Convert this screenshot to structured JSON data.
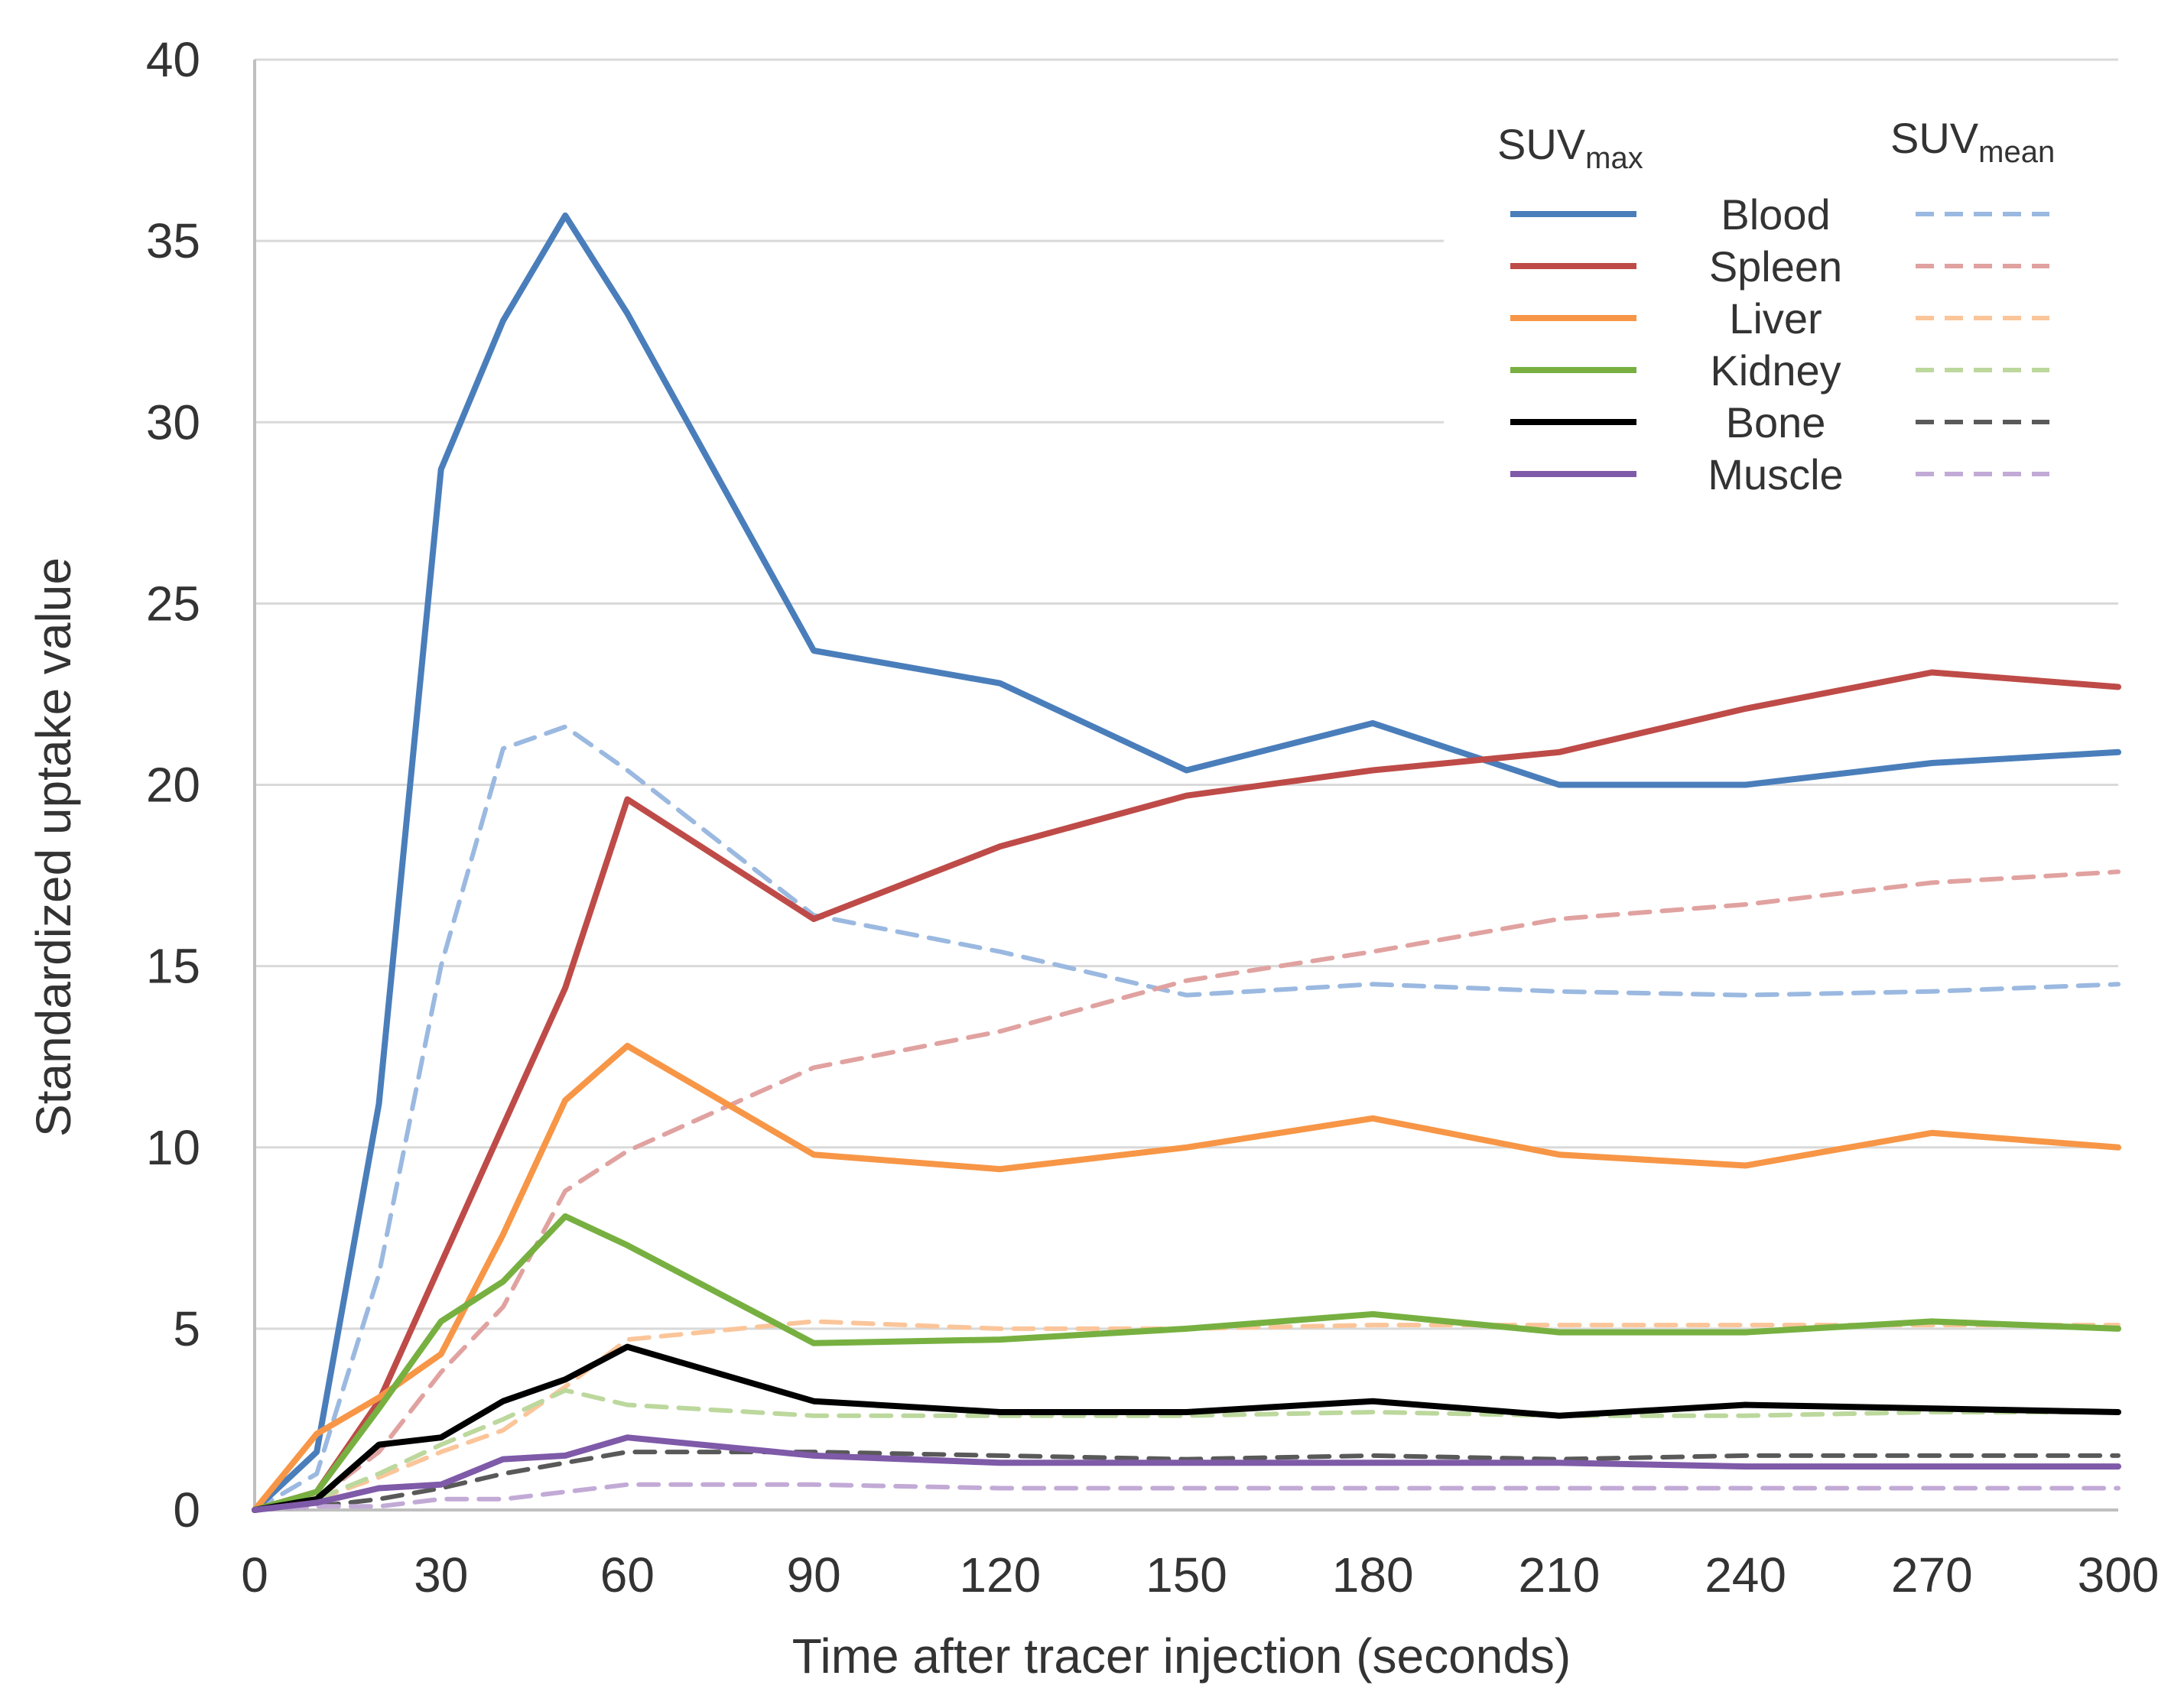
{
  "chart_data": {
    "type": "line",
    "title": "",
    "xlabel": "Time after tracer injection (seconds)",
    "ylabel": "Standardized uptake value",
    "xlim": [
      0,
      300
    ],
    "ylim": [
      0,
      40
    ],
    "xticks": [
      0,
      30,
      60,
      90,
      120,
      150,
      180,
      210,
      240,
      270,
      300
    ],
    "xtick_labels": [
      "0",
      "30",
      "60",
      "90",
      "120",
      "150",
      "180",
      "210",
      "240",
      "270",
      "300"
    ],
    "yticks": [
      0,
      5,
      10,
      15,
      20,
      25,
      30,
      35,
      40
    ],
    "ytick_labels": [
      "0",
      "5",
      "10",
      "15",
      "20",
      "25",
      "30",
      "35",
      "40"
    ],
    "grid": "horizontal",
    "legend": {
      "placement": "top-right",
      "header_max_main": "SUV",
      "header_max_sub": "max",
      "header_mean_main": "SUV",
      "header_mean_sub": "mean"
    },
    "series": [
      {
        "name": "Blood",
        "metric": "SUVmax",
        "style": "solid",
        "color": "#4a7ebb",
        "x": [
          0,
          10,
          20,
          30,
          40,
          50,
          60,
          90,
          120,
          150,
          180,
          210,
          240,
          270,
          300
        ],
        "y": [
          0,
          1.6,
          11.2,
          28.7,
          32.8,
          35.7,
          33.0,
          23.7,
          22.8,
          20.4,
          21.7,
          20.0,
          20.0,
          20.6,
          20.9
        ]
      },
      {
        "name": "Spleen",
        "metric": "SUVmax",
        "style": "solid",
        "color": "#be4b48",
        "x": [
          0,
          10,
          20,
          30,
          40,
          50,
          60,
          90,
          120,
          150,
          180,
          210,
          240,
          270,
          300
        ],
        "y": [
          0,
          0.5,
          3.0,
          6.8,
          10.6,
          14.4,
          19.6,
          16.3,
          18.3,
          19.7,
          20.4,
          20.9,
          22.1,
          23.1,
          22.7
        ]
      },
      {
        "name": "Liver",
        "metric": "SUVmax",
        "style": "solid",
        "color": "#f79646",
        "x": [
          0,
          10,
          20,
          30,
          40,
          50,
          60,
          90,
          120,
          150,
          180,
          210,
          240,
          270,
          300
        ],
        "y": [
          0,
          2.1,
          3.1,
          4.3,
          7.6,
          11.3,
          12.8,
          9.8,
          9.4,
          10.0,
          10.8,
          9.8,
          9.5,
          10.4,
          10.0
        ]
      },
      {
        "name": "Kidney",
        "metric": "SUVmax",
        "style": "solid",
        "color": "#77b041",
        "x": [
          0,
          10,
          20,
          30,
          40,
          50,
          60,
          90,
          120,
          150,
          180,
          210,
          240,
          270,
          300
        ],
        "y": [
          0,
          0.5,
          2.8,
          5.2,
          6.3,
          8.1,
          7.3,
          4.6,
          4.7,
          5.0,
          5.4,
          4.9,
          4.9,
          5.2,
          5.0
        ]
      },
      {
        "name": "Bone",
        "metric": "SUVmax",
        "style": "solid",
        "color": "#000000",
        "x": [
          0,
          10,
          20,
          30,
          40,
          50,
          60,
          90,
          120,
          150,
          180,
          210,
          240,
          270,
          300
        ],
        "y": [
          0,
          0.3,
          1.8,
          2.0,
          3.0,
          3.6,
          4.5,
          3.0,
          2.7,
          2.7,
          3.0,
          2.6,
          2.9,
          2.8,
          2.7
        ]
      },
      {
        "name": "Muscle",
        "metric": "SUVmax",
        "style": "solid",
        "color": "#7e5aa8",
        "x": [
          0,
          10,
          20,
          30,
          40,
          50,
          60,
          90,
          120,
          150,
          180,
          210,
          240,
          270,
          300
        ],
        "y": [
          0,
          0.2,
          0.6,
          0.7,
          1.4,
          1.5,
          2.0,
          1.5,
          1.3,
          1.3,
          1.3,
          1.3,
          1.2,
          1.2,
          1.2
        ]
      },
      {
        "name": "Blood",
        "metric": "SUVmean",
        "style": "dashed",
        "color": "#9bb9e0",
        "x": [
          0,
          10,
          20,
          30,
          40,
          50,
          60,
          90,
          120,
          150,
          180,
          210,
          240,
          270,
          300
        ],
        "y": [
          0,
          1.0,
          6.5,
          15.0,
          21.0,
          21.6,
          20.4,
          16.4,
          15.4,
          14.2,
          14.5,
          14.3,
          14.2,
          14.3,
          14.5
        ]
      },
      {
        "name": "Spleen",
        "metric": "SUVmean",
        "style": "dashed",
        "color": "#e0a2a0",
        "x": [
          0,
          10,
          20,
          30,
          40,
          50,
          60,
          90,
          120,
          150,
          180,
          210,
          240,
          270,
          300
        ],
        "y": [
          0,
          0.3,
          1.6,
          3.8,
          5.6,
          8.8,
          9.9,
          12.2,
          13.2,
          14.6,
          15.4,
          16.3,
          16.7,
          17.3,
          17.6
        ]
      },
      {
        "name": "Liver",
        "metric": "SUVmean",
        "style": "dashed",
        "color": "#fbc59a",
        "x": [
          0,
          10,
          20,
          30,
          40,
          50,
          60,
          90,
          120,
          150,
          180,
          210,
          240,
          270,
          300
        ],
        "y": [
          0,
          0.3,
          0.9,
          1.6,
          2.2,
          3.4,
          4.7,
          5.2,
          5.0,
          5.0,
          5.1,
          5.1,
          5.1,
          5.1,
          5.1
        ]
      },
      {
        "name": "Kidney",
        "metric": "SUVmean",
        "style": "dashed",
        "color": "#bcd89d",
        "x": [
          0,
          10,
          20,
          30,
          40,
          50,
          60,
          90,
          120,
          150,
          180,
          210,
          240,
          270,
          300
        ],
        "y": [
          0,
          0.3,
          1.0,
          1.8,
          2.5,
          3.3,
          2.9,
          2.6,
          2.6,
          2.6,
          2.7,
          2.6,
          2.6,
          2.7,
          2.7
        ]
      },
      {
        "name": "Bone",
        "metric": "SUVmean",
        "style": "dashed",
        "color": "#595959",
        "x": [
          0,
          10,
          20,
          30,
          40,
          50,
          60,
          90,
          120,
          150,
          180,
          210,
          240,
          270,
          300
        ],
        "y": [
          0,
          0.1,
          0.3,
          0.6,
          1.0,
          1.3,
          1.6,
          1.6,
          1.5,
          1.4,
          1.5,
          1.4,
          1.5,
          1.5,
          1.5
        ]
      },
      {
        "name": "Muscle",
        "metric": "SUVmean",
        "style": "dashed",
        "color": "#c2aad6",
        "x": [
          0,
          10,
          20,
          30,
          40,
          50,
          60,
          90,
          120,
          150,
          180,
          210,
          240,
          270,
          300
        ],
        "y": [
          0,
          0.1,
          0.1,
          0.3,
          0.3,
          0.5,
          0.7,
          0.7,
          0.6,
          0.6,
          0.6,
          0.6,
          0.6,
          0.6,
          0.6
        ]
      }
    ],
    "legend_rows": [
      {
        "label": "Blood",
        "max_color": "#4a7ebb",
        "mean_color": "#9bb9e0"
      },
      {
        "label": "Spleen",
        "max_color": "#be4b48",
        "mean_color": "#e0a2a0"
      },
      {
        "label": "Liver",
        "max_color": "#f79646",
        "mean_color": "#fbc59a"
      },
      {
        "label": "Kidney",
        "max_color": "#77b041",
        "mean_color": "#bcd89d"
      },
      {
        "label": "Bone",
        "max_color": "#000000",
        "mean_color": "#595959"
      },
      {
        "label": "Muscle",
        "max_color": "#7e5aa8",
        "mean_color": "#c2aad6"
      }
    ],
    "colors": {
      "grid": "#d9d9d9",
      "axis": "#bfbfbf",
      "text": "#333333"
    }
  }
}
